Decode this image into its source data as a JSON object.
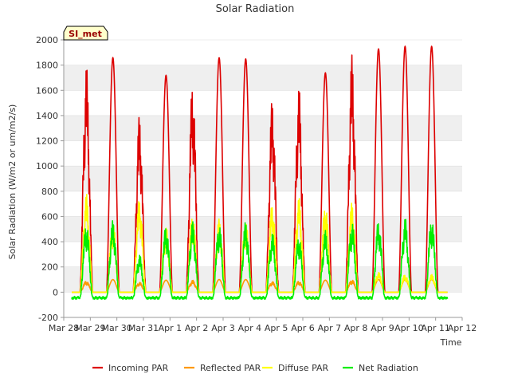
{
  "chart_data": {
    "type": "line",
    "title": "Solar Radiation",
    "xlabel": "Time",
    "ylabel": "Solar Radiation (W/m2 or um/m2/s)",
    "site_label": "SI_met",
    "ylim": [
      -200,
      2000
    ],
    "yticks": [
      -200,
      0,
      200,
      400,
      600,
      800,
      1000,
      1200,
      1400,
      1600,
      1800,
      2000
    ],
    "xlim": [
      0,
      15
    ],
    "xticks": [
      {
        "v": 0,
        "label": "Mar 28"
      },
      {
        "v": 1,
        "label": "Mar 29"
      },
      {
        "v": 2,
        "label": "Mar 30"
      },
      {
        "v": 3,
        "label": "Mar 31"
      },
      {
        "v": 4,
        "label": "Apr 1"
      },
      {
        "v": 5,
        "label": "Apr 2"
      },
      {
        "v": 6,
        "label": "Apr 3"
      },
      {
        "v": 7,
        "label": "Apr 4"
      },
      {
        "v": 8,
        "label": "Apr 5"
      },
      {
        "v": 9,
        "label": "Apr 6"
      },
      {
        "v": 10,
        "label": "Apr 7"
      },
      {
        "v": 11,
        "label": "Apr 8"
      },
      {
        "v": 12,
        "label": "Apr 9"
      },
      {
        "v": 13,
        "label": "Apr 10"
      },
      {
        "v": 14,
        "label": "Apr 11"
      },
      {
        "v": 15,
        "label": "Apr 12"
      }
    ],
    "data_start": 0.3,
    "data_end": 14.45,
    "day_centers": [
      0.85,
      1.85,
      2.85,
      3.85,
      4.85,
      5.85,
      6.85,
      7.85,
      8.85,
      9.85,
      10.85,
      11.85,
      12.85,
      13.85
    ],
    "day_width": 0.24,
    "series": [
      {
        "name": "Incoming PAR",
        "color": "#dd0000",
        "daily_peak": [
          1800,
          1860,
          1400,
          1720,
          1670,
          1860,
          1850,
          1530,
          1630,
          1740,
          1880,
          1930,
          1950,
          1950
        ],
        "night_value": 0
      },
      {
        "name": "Reflected PAR",
        "color": "#ff9900",
        "daily_peak": [
          90,
          100,
          80,
          95,
          95,
          100,
          100,
          85,
          90,
          95,
          100,
          100,
          100,
          100
        ],
        "night_value": 0
      },
      {
        "name": "Diffuse PAR",
        "color": "#ffff00",
        "daily_peak": [
          780,
          560,
          740,
          520,
          620,
          580,
          560,
          700,
          750,
          700,
          710,
          160,
          140,
          140
        ],
        "night_value": 0
      },
      {
        "name": "Net Radiation",
        "color": "#00ee00",
        "daily_peak": [
          550,
          570,
          300,
          530,
          560,
          540,
          560,
          470,
          450,
          490,
          560,
          570,
          590,
          590
        ],
        "night_value": -40
      }
    ],
    "legend_position": "bottom",
    "grid": "horizontal-bands"
  }
}
